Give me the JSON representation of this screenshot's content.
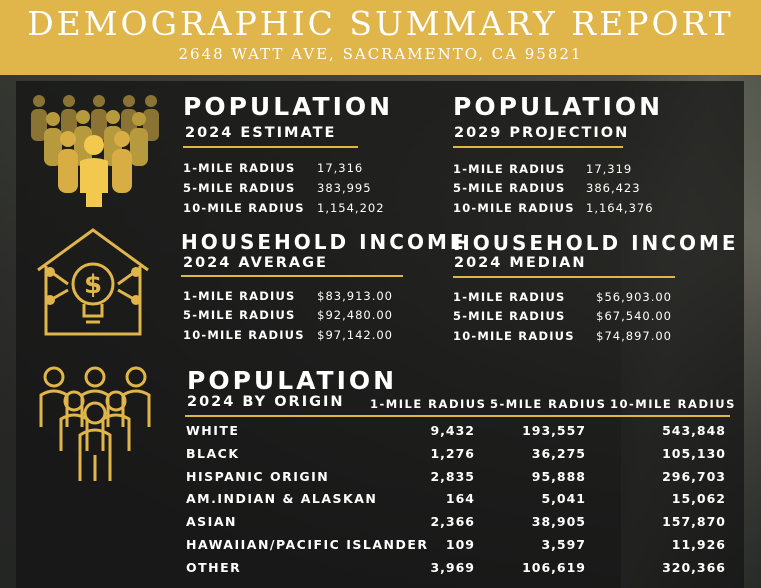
{
  "header": {
    "title": "DEMOGRAPHIC SUMMARY REPORT",
    "address": "2648 WATT AVE, SACRAMENTO, CA 95821"
  },
  "colors": {
    "accent": "#e0b54a",
    "header_bg": "#e0b54a",
    "text": "#ffffff"
  },
  "icons": [
    "people-crowd-icon",
    "house-income-icon",
    "group-people-icon"
  ],
  "population_2024": {
    "title": "POPULATION",
    "subtitle": "2024 ESTIMATE",
    "rows": [
      {
        "label": "1-MILE RADIUS",
        "value": "17,316"
      },
      {
        "label": "5-MILE RADIUS",
        "value": "383,995"
      },
      {
        "label": "10-MILE RADIUS",
        "value": "1,154,202"
      }
    ]
  },
  "population_2029": {
    "title": "POPULATION",
    "subtitle": "2029 PROJECTION",
    "rows": [
      {
        "label": "1-MILE RADIUS",
        "value": "17,319"
      },
      {
        "label": "5-MILE RADIUS",
        "value": "386,423"
      },
      {
        "label": "10-MILE RADIUS",
        "value": "1,164,376"
      }
    ]
  },
  "income_avg": {
    "title": "HOUSEHOLD INCOME",
    "subtitle": "2024 AVERAGE",
    "rows": [
      {
        "label": "1-MILE RADIUS",
        "value": "$83,913.00"
      },
      {
        "label": "5-MILE RADIUS",
        "value": "$92,480.00"
      },
      {
        "label": "10-MILE RADIUS",
        "value": "$97,142.00"
      }
    ]
  },
  "income_median": {
    "title": "HOUSEHOLD INCOME",
    "subtitle": "2024 MEDIAN",
    "rows": [
      {
        "label": "1-MILE RADIUS",
        "value": "$56,903.00"
      },
      {
        "label": "5-MILE RADIUS",
        "value": "$67,540.00"
      },
      {
        "label": "10-MILE RADIUS",
        "value": "$74,897.00"
      }
    ]
  },
  "origin": {
    "title": "POPULATION",
    "subtitle": "2024 BY ORIGIN",
    "columns": [
      "1-MILE RADIUS",
      "5-MILE RADIUS",
      "10-MILE RADIUS"
    ],
    "rows": [
      {
        "label": "WHITE",
        "values": [
          "9,432",
          "193,557",
          "543,848"
        ]
      },
      {
        "label": "BLACK",
        "values": [
          "1,276",
          "36,275",
          "105,130"
        ]
      },
      {
        "label": "HISPANIC ORIGIN",
        "values": [
          "2,835",
          "95,888",
          "296,703"
        ]
      },
      {
        "label": "AM.INDIAN & ALASKAN",
        "values": [
          "164",
          "5,041",
          "15,062"
        ]
      },
      {
        "label": "ASIAN",
        "values": [
          "2,366",
          "38,905",
          "157,870"
        ]
      },
      {
        "label": "HAWAIIAN/PACIFIC ISLANDER",
        "values": [
          "109",
          "3,597",
          "11,926"
        ]
      },
      {
        "label": "OTHER",
        "values": [
          "3,969",
          "106,619",
          "320,366"
        ]
      }
    ]
  }
}
